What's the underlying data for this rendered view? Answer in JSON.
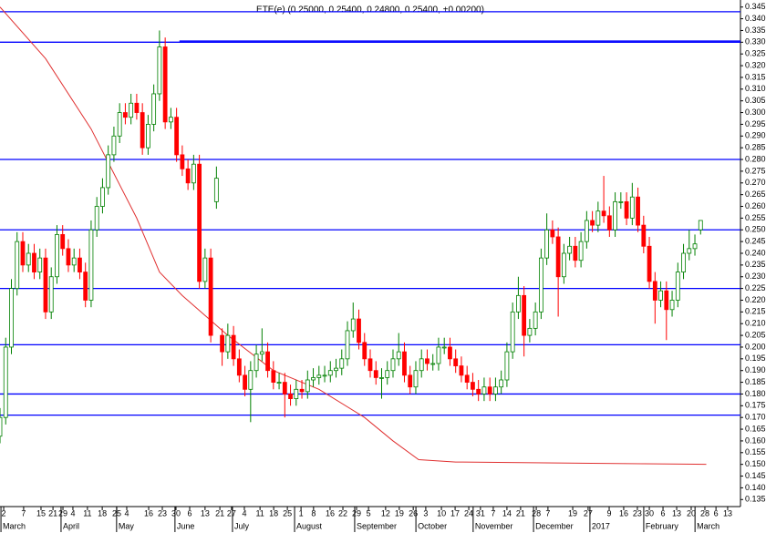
{
  "chart_data": {
    "type": "candlestick",
    "title": "ETE(e) (0.25000, 0.25400, 0.24800, 0.25400, +0.00200)",
    "up_color": "#008000",
    "down_color": "#ff0000",
    "line_color": "#0000ff",
    "ma_color": "#e03030",
    "xlim": [
      0,
      260
    ],
    "ylim": [
      0.132,
      0.348
    ],
    "yticks": [
      {
        "value": 0.135,
        "label": "0.135"
      },
      {
        "value": 0.14,
        "label": "0.140"
      },
      {
        "value": 0.145,
        "label": "0.145"
      },
      {
        "value": 0.15,
        "label": "0.150"
      },
      {
        "value": 0.155,
        "label": "0.155"
      },
      {
        "value": 0.16,
        "label": "0.160"
      },
      {
        "value": 0.165,
        "label": "0.165"
      },
      {
        "value": 0.17,
        "label": "0.170"
      },
      {
        "value": 0.175,
        "label": "0.175"
      },
      {
        "value": 0.18,
        "label": "0.180"
      },
      {
        "value": 0.185,
        "label": "0.185"
      },
      {
        "value": 0.19,
        "label": "0.190"
      },
      {
        "value": 0.195,
        "label": "0.195"
      },
      {
        "value": 0.2,
        "label": "0.200"
      },
      {
        "value": 0.205,
        "label": "0.205"
      },
      {
        "value": 0.21,
        "label": "0.210"
      },
      {
        "value": 0.215,
        "label": "0.215"
      },
      {
        "value": 0.22,
        "label": "0.220"
      },
      {
        "value": 0.225,
        "label": "0.225"
      },
      {
        "value": 0.23,
        "label": "0.230"
      },
      {
        "value": 0.235,
        "label": "0.235"
      },
      {
        "value": 0.24,
        "label": "0.240"
      },
      {
        "value": 0.245,
        "label": "0.245"
      },
      {
        "value": 0.25,
        "label": "0.250"
      },
      {
        "value": 0.255,
        "label": "0.255"
      },
      {
        "value": 0.26,
        "label": "0.260"
      },
      {
        "value": 0.265,
        "label": "0.265"
      },
      {
        "value": 0.27,
        "label": "0.270"
      },
      {
        "value": 0.275,
        "label": "0.275"
      },
      {
        "value": 0.28,
        "label": "0.280"
      },
      {
        "value": 0.285,
        "label": "0.285"
      },
      {
        "value": 0.29,
        "label": "0.290"
      },
      {
        "value": 0.295,
        "label": "0.295"
      },
      {
        "value": 0.3,
        "label": "0.300"
      },
      {
        "value": 0.305,
        "label": "0.305"
      },
      {
        "value": 0.31,
        "label": "0.310"
      },
      {
        "value": 0.315,
        "label": "0.315"
      },
      {
        "value": 0.32,
        "label": "0.320"
      },
      {
        "value": 0.325,
        "label": "0.325"
      },
      {
        "value": 0.33,
        "label": "0.330"
      },
      {
        "value": 0.335,
        "label": "0.335"
      },
      {
        "value": 0.34,
        "label": "0.340"
      },
      {
        "value": 0.345,
        "label": "0.345"
      }
    ],
    "xticks": [
      {
        "value": 1.3,
        "label": "2"
      },
      {
        "value": 8.3,
        "label": "7"
      },
      {
        "value": 14.4,
        "label": "15"
      },
      {
        "value": 18.6,
        "label": "21"
      },
      {
        "value": 22.1,
        "label": "29"
      },
      {
        "value": 25.6,
        "label": "4"
      },
      {
        "value": 30.7,
        "label": "11"
      },
      {
        "value": 35.9,
        "label": "18"
      },
      {
        "value": 41,
        "label": "25"
      },
      {
        "value": 44.5,
        "label": "4"
      },
      {
        "value": 52.2,
        "label": "16"
      },
      {
        "value": 57,
        "label": "23"
      },
      {
        "value": 61.8,
        "label": "30"
      },
      {
        "value": 66.6,
        "label": "6"
      },
      {
        "value": 72,
        "label": "13"
      },
      {
        "value": 77.2,
        "label": "21"
      },
      {
        "value": 81.3,
        "label": "27"
      },
      {
        "value": 85.8,
        "label": "4"
      },
      {
        "value": 91.3,
        "label": "11"
      },
      {
        "value": 96.1,
        "label": "18"
      },
      {
        "value": 100.9,
        "label": "25"
      },
      {
        "value": 105.7,
        "label": "1"
      },
      {
        "value": 110.1,
        "label": "8"
      },
      {
        "value": 115.9,
        "label": "16"
      },
      {
        "value": 120.4,
        "label": "22"
      },
      {
        "value": 125.2,
        "label": "29"
      },
      {
        "value": 129.4,
        "label": "5"
      },
      {
        "value": 135.4,
        "label": "12"
      },
      {
        "value": 140.2,
        "label": "19"
      },
      {
        "value": 145.1,
        "label": "26"
      },
      {
        "value": 149.5,
        "label": "3"
      },
      {
        "value": 155,
        "label": "10"
      },
      {
        "value": 159.8,
        "label": "17"
      },
      {
        "value": 164.6,
        "label": "24"
      },
      {
        "value": 168.7,
        "label": "31"
      },
      {
        "value": 173.2,
        "label": "7"
      },
      {
        "value": 178,
        "label": "14"
      },
      {
        "value": 182.8,
        "label": "21"
      },
      {
        "value": 188.3,
        "label": "28"
      },
      {
        "value": 192.4,
        "label": "7"
      },
      {
        "value": 201.1,
        "label": "19"
      },
      {
        "value": 206.5,
        "label": "27"
      },
      {
        "value": 213.9,
        "label": "9"
      },
      {
        "value": 219,
        "label": "16"
      },
      {
        "value": 223.8,
        "label": "23"
      },
      {
        "value": 228,
        "label": "30"
      },
      {
        "value": 232.8,
        "label": "6"
      },
      {
        "value": 237.6,
        "label": "13"
      },
      {
        "value": 242.7,
        "label": "20"
      },
      {
        "value": 247.5,
        "label": "28"
      },
      {
        "value": 251.4,
        "label": "6"
      },
      {
        "value": 255.5,
        "label": "13"
      }
    ],
    "month_ticks": [
      {
        "value": 2.9,
        "label": "March"
      },
      {
        "value": 24,
        "label": "April"
      },
      {
        "value": 43.5,
        "label": "May"
      },
      {
        "value": 64,
        "label": "June"
      },
      {
        "value": 84.2,
        "label": "July"
      },
      {
        "value": 106,
        "label": "August"
      },
      {
        "value": 127.1,
        "label": "September"
      },
      {
        "value": 148.6,
        "label": "October"
      },
      {
        "value": 168.7,
        "label": "November"
      },
      {
        "value": 189.9,
        "label": "December"
      },
      {
        "value": 209.7,
        "label": "2017"
      },
      {
        "value": 228.6,
        "label": "February"
      },
      {
        "value": 246.6,
        "label": "March"
      }
    ],
    "x": [
      0,
      2,
      4,
      6,
      8,
      10,
      12,
      14,
      16,
      18,
      20,
      22,
      24,
      26,
      28,
      30,
      32,
      34,
      36,
      38,
      40,
      42,
      44,
      46,
      48,
      50,
      52,
      54,
      56,
      58,
      60,
      62,
      64,
      66,
      68,
      70,
      72,
      74,
      76,
      78,
      80,
      82,
      84,
      86,
      88,
      90,
      92,
      94,
      96,
      98,
      100,
      102,
      104,
      106,
      108,
      110,
      112,
      114,
      116,
      118,
      120,
      122,
      124,
      126,
      128,
      130,
      132,
      134,
      136,
      138,
      140,
      142,
      144,
      146,
      148,
      150,
      152,
      154,
      156,
      158,
      160,
      162,
      164,
      166,
      168,
      170,
      172,
      174,
      176,
      178,
      180,
      182,
      184,
      186,
      188,
      190,
      192,
      194,
      196,
      198,
      200,
      202,
      204,
      206,
      208,
      210,
      212,
      214,
      216,
      218,
      220,
      222,
      224,
      226,
      228,
      230,
      232,
      234,
      236,
      238,
      240,
      242,
      244,
      246
    ],
    "ohlc": [
      [
        0.162,
        0.174,
        0.159,
        0.17
      ],
      [
        0.17,
        0.204,
        0.167,
        0.2
      ],
      [
        0.2,
        0.229,
        0.197,
        0.225
      ],
      [
        0.225,
        0.249,
        0.222,
        0.245
      ],
      [
        0.245,
        0.249,
        0.232,
        0.235
      ],
      [
        0.235,
        0.244,
        0.232,
        0.24
      ],
      [
        0.24,
        0.244,
        0.229,
        0.232
      ],
      [
        0.232,
        0.242,
        0.229,
        0.238
      ],
      [
        0.238,
        0.242,
        0.212,
        0.215
      ],
      [
        0.215,
        0.234,
        0.212,
        0.23
      ],
      [
        0.23,
        0.252,
        0.227,
        0.248
      ],
      [
        0.248,
        0.252,
        0.239,
        0.242
      ],
      [
        0.242,
        0.246,
        0.232,
        0.235
      ],
      [
        0.235,
        0.242,
        0.232,
        0.238
      ],
      [
        0.238,
        0.242,
        0.229,
        0.232
      ],
      [
        0.232,
        0.236,
        0.217,
        0.22
      ],
      [
        0.22,
        0.254,
        0.217,
        0.25
      ],
      [
        0.25,
        0.264,
        0.247,
        0.26
      ],
      [
        0.26,
        0.272,
        0.257,
        0.268
      ],
      [
        0.268,
        0.286,
        0.265,
        0.282
      ],
      [
        0.282,
        0.294,
        0.279,
        0.29
      ],
      [
        0.29,
        0.304,
        0.287,
        0.3
      ],
      [
        0.3,
        0.304,
        0.295,
        0.298
      ],
      [
        0.298,
        0.308,
        0.295,
        0.304
      ],
      [
        0.304,
        0.308,
        0.297,
        0.3
      ],
      [
        0.3,
        0.304,
        0.282,
        0.285
      ],
      [
        0.285,
        0.299,
        0.282,
        0.295
      ],
      [
        0.295,
        0.312,
        0.292,
        0.308
      ],
      [
        0.308,
        0.335,
        0.305,
        0.328
      ],
      [
        0.328,
        0.332,
        0.293,
        0.296
      ],
      [
        0.296,
        0.302,
        0.293,
        0.298
      ],
      [
        0.298,
        0.302,
        0.279,
        0.282
      ],
      [
        0.282,
        0.286,
        0.273,
        0.276
      ],
      [
        0.276,
        0.28,
        0.267,
        0.27
      ],
      [
        0.27,
        0.282,
        0.267,
        0.278
      ],
      [
        0.278,
        0.282,
        0.225,
        0.228
      ],
      [
        0.228,
        0.242,
        0.225,
        0.238
      ],
      [
        0.238,
        0.242,
        0.202,
        0.205
      ],
      [
        0.262,
        0.277,
        0.259,
        0.272
      ],
      [
        0.205,
        0.208,
        0.192,
        0.198
      ],
      [
        0.198,
        0.21,
        0.195,
        0.205
      ],
      [
        0.205,
        0.209,
        0.192,
        0.195
      ],
      [
        0.195,
        0.199,
        0.185,
        0.188
      ],
      [
        0.188,
        0.192,
        0.179,
        0.182
      ],
      [
        0.182,
        0.194,
        0.168,
        0.19
      ],
      [
        0.19,
        0.201,
        0.187,
        0.197
      ],
      [
        0.197,
        0.208,
        0.194,
        0.198
      ],
      [
        0.198,
        0.202,
        0.187,
        0.19
      ],
      [
        0.19,
        0.194,
        0.182,
        0.185
      ],
      [
        0.185,
        0.189,
        0.182,
        0.185
      ],
      [
        0.185,
        0.189,
        0.17,
        0.18
      ],
      [
        0.18,
        0.184,
        0.175,
        0.178
      ],
      [
        0.178,
        0.186,
        0.175,
        0.182
      ],
      [
        0.182,
        0.186,
        0.178,
        0.181
      ],
      [
        0.181,
        0.19,
        0.178,
        0.186
      ],
      [
        0.186,
        0.191,
        0.183,
        0.187
      ],
      [
        0.187,
        0.192,
        0.184,
        0.188
      ],
      [
        0.188,
        0.192,
        0.185,
        0.188
      ],
      [
        0.188,
        0.194,
        0.185,
        0.19
      ],
      [
        0.19,
        0.195,
        0.187,
        0.191
      ],
      [
        0.191,
        0.199,
        0.188,
        0.195
      ],
      [
        0.195,
        0.211,
        0.192,
        0.207
      ],
      [
        0.207,
        0.219,
        0.204,
        0.212
      ],
      [
        0.212,
        0.216,
        0.199,
        0.202
      ],
      [
        0.202,
        0.206,
        0.192,
        0.195
      ],
      [
        0.195,
        0.199,
        0.187,
        0.19
      ],
      [
        0.19,
        0.194,
        0.184,
        0.187
      ],
      [
        0.187,
        0.191,
        0.178,
        0.187
      ],
      [
        0.187,
        0.194,
        0.184,
        0.19
      ],
      [
        0.19,
        0.199,
        0.187,
        0.195
      ],
      [
        0.195,
        0.206,
        0.192,
        0.198
      ],
      [
        0.198,
        0.202,
        0.185,
        0.188
      ],
      [
        0.188,
        0.192,
        0.18,
        0.183
      ],
      [
        0.183,
        0.194,
        0.18,
        0.19
      ],
      [
        0.19,
        0.199,
        0.187,
        0.195
      ],
      [
        0.195,
        0.199,
        0.19,
        0.193
      ],
      [
        0.193,
        0.197,
        0.19,
        0.193
      ],
      [
        0.193,
        0.204,
        0.19,
        0.2
      ],
      [
        0.2,
        0.204,
        0.197,
        0.2
      ],
      [
        0.2,
        0.204,
        0.192,
        0.195
      ],
      [
        0.195,
        0.199,
        0.189,
        0.192
      ],
      [
        0.192,
        0.196,
        0.185,
        0.188
      ],
      [
        0.188,
        0.192,
        0.182,
        0.185
      ],
      [
        0.185,
        0.189,
        0.179,
        0.182
      ],
      [
        0.182,
        0.186,
        0.177,
        0.18
      ],
      [
        0.18,
        0.187,
        0.177,
        0.183
      ],
      [
        0.183,
        0.187,
        0.177,
        0.18
      ],
      [
        0.18,
        0.187,
        0.177,
        0.183
      ],
      [
        0.183,
        0.19,
        0.18,
        0.186
      ],
      [
        0.186,
        0.202,
        0.183,
        0.198
      ],
      [
        0.198,
        0.219,
        0.195,
        0.215
      ],
      [
        0.215,
        0.23,
        0.212,
        0.222
      ],
      [
        0.222,
        0.226,
        0.196,
        0.205
      ],
      [
        0.205,
        0.212,
        0.202,
        0.208
      ],
      [
        0.208,
        0.219,
        0.205,
        0.215
      ],
      [
        0.215,
        0.242,
        0.212,
        0.238
      ],
      [
        0.238,
        0.257,
        0.235,
        0.25
      ],
      [
        0.25,
        0.254,
        0.244,
        0.247
      ],
      [
        0.247,
        0.251,
        0.213,
        0.23
      ],
      [
        0.23,
        0.244,
        0.227,
        0.24
      ],
      [
        0.24,
        0.247,
        0.237,
        0.243
      ],
      [
        0.243,
        0.247,
        0.234,
        0.237
      ],
      [
        0.237,
        0.249,
        0.234,
        0.245
      ],
      [
        0.245,
        0.258,
        0.242,
        0.254
      ],
      [
        0.254,
        0.258,
        0.249,
        0.252
      ],
      [
        0.252,
        0.262,
        0.249,
        0.258
      ],
      [
        0.258,
        0.273,
        0.253,
        0.256
      ],
      [
        0.256,
        0.26,
        0.247,
        0.25
      ],
      [
        0.25,
        0.266,
        0.247,
        0.262
      ],
      [
        0.262,
        0.266,
        0.259,
        0.262
      ],
      [
        0.262,
        0.266,
        0.252,
        0.255
      ],
      [
        0.255,
        0.27,
        0.252,
        0.264
      ],
      [
        0.264,
        0.268,
        0.249,
        0.252
      ],
      [
        0.252,
        0.256,
        0.24,
        0.243
      ],
      [
        0.243,
        0.247,
        0.225,
        0.228
      ],
      [
        0.228,
        0.232,
        0.21,
        0.22
      ],
      [
        0.22,
        0.228,
        0.217,
        0.224
      ],
      [
        0.224,
        0.228,
        0.203,
        0.216
      ],
      [
        0.216,
        0.224,
        0.213,
        0.22
      ],
      [
        0.22,
        0.236,
        0.217,
        0.232
      ],
      [
        0.232,
        0.244,
        0.229,
        0.24
      ],
      [
        0.24,
        0.25,
        0.237,
        0.242
      ],
      [
        0.242,
        0.248,
        0.239,
        0.244
      ],
      [
        0.25,
        0.254,
        0.248,
        0.254
      ]
    ],
    "moving_average": {
      "x": [
        0,
        16,
        32,
        48,
        56,
        64,
        80,
        96,
        112,
        128,
        138,
        147,
        160,
        248
      ],
      "values": [
        0.345,
        0.323,
        0.293,
        0.255,
        0.232,
        0.222,
        0.205,
        0.19,
        0.182,
        0.17,
        0.16,
        0.152,
        0.151,
        0.15
      ]
    },
    "reference_lines": [
      0.343,
      0.33,
      0.28,
      0.25,
      0.225,
      0.201,
      0.18,
      0.171
    ],
    "segments": [
      {
        "y": 0.3305,
        "x0": 63,
        "x1": 260
      }
    ]
  }
}
